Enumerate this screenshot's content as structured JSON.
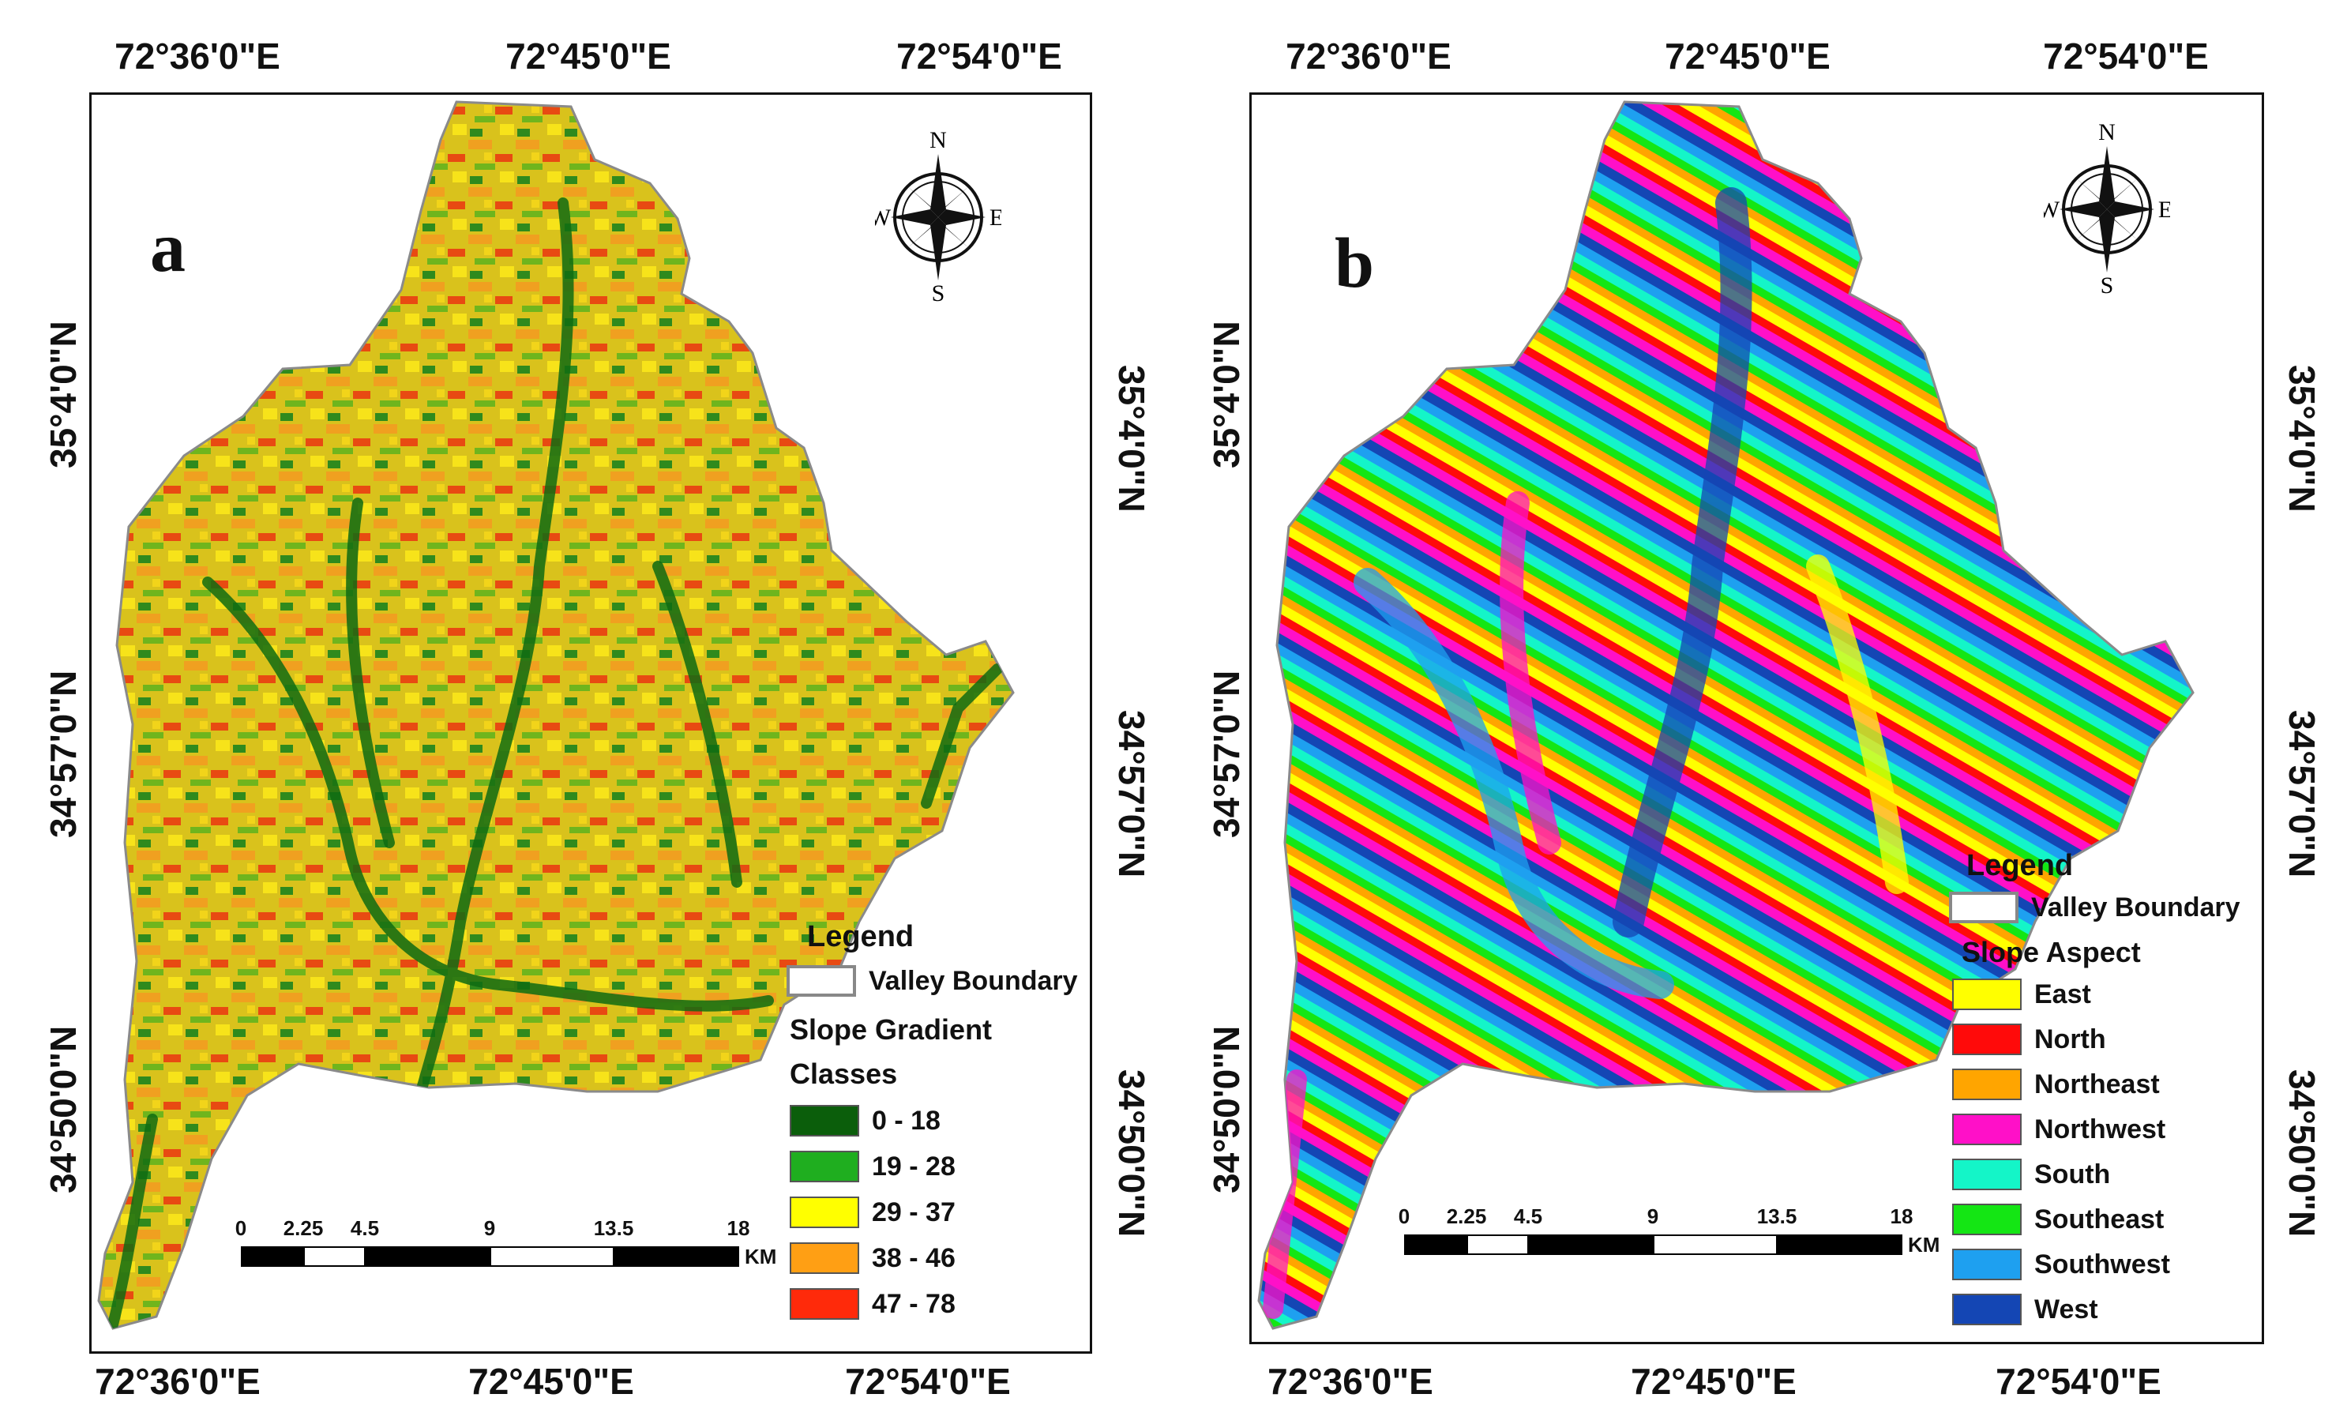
{
  "panel_a": {
    "letter": "a",
    "top_lon": [
      "72°36'0\"E",
      "72°45'0\"E",
      "72°54'0\"E"
    ],
    "bottom_lon": [
      "72°36'0\"E",
      "72°45'0\"E",
      "72°54'0\"E"
    ],
    "left_lat": [
      "35°4'0\"N",
      "34°57'0\"N",
      "34°50'0\"N"
    ],
    "right_lat": [
      "35°4'0\"N",
      "34°57'0\"N",
      "34°50'0\"N"
    ],
    "compass": {
      "n": "N",
      "s": "S",
      "e": "E",
      "w": "W"
    },
    "legend": {
      "title": "Legend",
      "boundary_label": "Valley Boundary",
      "heading_1": "Slope Gradient",
      "heading_2": "Classes",
      "items": [
        {
          "label": "0 - 18",
          "color": "#0b5e0b"
        },
        {
          "label": "19 - 28",
          "color": "#1fae1f"
        },
        {
          "label": "29 - 37",
          "color": "#ffff00"
        },
        {
          "label": "38 - 46",
          "color": "#ff9f14"
        },
        {
          "label": "47 - 78",
          "color": "#ff2a0a"
        }
      ]
    },
    "scale": {
      "ticks": [
        "0",
        "2.25",
        "4.5",
        "9",
        "13.5",
        "18"
      ],
      "unit": "KM"
    }
  },
  "panel_b": {
    "letter": "b",
    "top_lon": [
      "72°36'0\"E",
      "72°45'0\"E",
      "72°54'0\"E"
    ],
    "bottom_lon": [
      "72°36'0\"E",
      "72°45'0\"E",
      "72°54'0\"E"
    ],
    "left_lat": [
      "35°4'0\"N",
      "34°57'0\"N",
      "34°50'0\"N"
    ],
    "right_lat": [
      "35°4'0\"N",
      "34°57'0\"N",
      "34°50'0\"N"
    ],
    "compass": {
      "n": "N",
      "s": "S",
      "e": "E",
      "w": "W"
    },
    "legend": {
      "title": "Legend",
      "boundary_label": "Valley Boundary",
      "heading_1": "Slope Aspect",
      "items": [
        {
          "label": "East",
          "color": "#ffff00"
        },
        {
          "label": "North",
          "color": "#ff0a0a"
        },
        {
          "label": "Northeast",
          "color": "#ffa500"
        },
        {
          "label": "Northwest",
          "color": "#ff10c8"
        },
        {
          "label": "South",
          "color": "#14f5c8"
        },
        {
          "label": "Southeast",
          "color": "#14e614"
        },
        {
          "label": "Southwest",
          "color": "#1ea0f0"
        },
        {
          "label": "West",
          "color": "#1446b4"
        }
      ]
    },
    "scale": {
      "ticks": [
        "0",
        "2.25",
        "4.5",
        "9",
        "13.5",
        "18"
      ],
      "unit": "KM"
    }
  }
}
